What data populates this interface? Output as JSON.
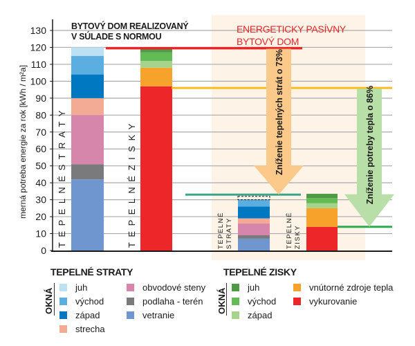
{
  "chart_data": {
    "type": "bar",
    "stacked": true,
    "ylabel": "merná potreba energie za rok [kWh / m²a]",
    "ylim": [
      0,
      130
    ],
    "yticks": [
      0,
      10,
      20,
      30,
      40,
      50,
      60,
      70,
      80,
      90,
      100,
      110,
      120,
      130
    ],
    "grid": true,
    "groups": [
      {
        "title": "BYTOVÝ DOM REALIZOVANÝ V SÚLADE S NORMOU",
        "title_lines": [
          "BYTOVÝ DOM REALIZOVANÝ",
          "V SÚLADE S NORMOU"
        ],
        "title_color": "#1a1a1a",
        "bars": [
          {
            "label": "TEPELNÉ STRATY",
            "segments": [
              {
                "name": "vetranie",
                "value": 42,
                "color": "#7096cf"
              },
              {
                "name": "podlaha - terén",
                "value": 9,
                "color": "#7a7a7c"
              },
              {
                "name": "obvodové steny",
                "value": 29,
                "color": "#d685ab"
              },
              {
                "name": "strecha",
                "value": 10,
                "color": "#f4ab95"
              },
              {
                "name": "okná západ",
                "value": 14,
                "color": "#0078c1"
              },
              {
                "name": "okná východ",
                "value": 11,
                "color": "#5aaee0"
              },
              {
                "name": "okná juh",
                "value": 5,
                "color": "#bde0f3"
              }
            ]
          },
          {
            "label": "TEPELNÉ ZISKY",
            "segments": [
              {
                "name": "vykurovanie",
                "value": 97,
                "color": "#ed2629"
              },
              {
                "name": "vnútorné zdroje tepla",
                "value": 11,
                "color": "#f7a22b"
              },
              {
                "name": "okná západ",
                "value": 4,
                "color": "#a6d48c"
              },
              {
                "name": "okná východ",
                "value": 5,
                "color": "#62bb55"
              },
              {
                "name": "okná juh",
                "value": 3,
                "color": "#4f9a45"
              }
            ]
          }
        ]
      },
      {
        "title": "ENERGETICKY PASÍVNY BYTOVÝ DOM",
        "title_lines": [
          "ENERGETICKY PASÍVNY",
          "BYTOVÝ DOM"
        ],
        "title_color": "#e8262a",
        "background": "#fdf3e6",
        "bars": [
          {
            "label": "TEPELNÉ STRATY",
            "label_lines": [
              "TEPELNÉ",
              "STRATY"
            ],
            "segments": [
              {
                "name": "vetranie",
                "value": 7,
                "color": "#7096cf"
              },
              {
                "name": "podlaha - terén",
                "value": 2,
                "color": "#7a7a7c"
              },
              {
                "name": "obvodové steny",
                "value": 7,
                "color": "#d685ab"
              },
              {
                "name": "strecha",
                "value": 3,
                "color": "#f4ab95"
              },
              {
                "name": "okná západ",
                "value": 7,
                "color": "#0078c1"
              },
              {
                "name": "okná východ",
                "value": 4,
                "color": "#5aaee0"
              },
              {
                "name": "okná juh",
                "value": 2,
                "color": "dashed"
              }
            ]
          },
          {
            "label": "TEPELNÉ ZISKY",
            "label_lines": [
              "TEPELNÉ",
              "ZISKY"
            ],
            "segments": [
              {
                "name": "vykurovanie",
                "value": 14,
                "color": "#ed2629"
              },
              {
                "name": "vnútorné zdroje tepla",
                "value": 11,
                "color": "#f7a22b"
              },
              {
                "name": "okná západ",
                "value": 3,
                "color": "#a6d48c"
              },
              {
                "name": "okná východ",
                "value": 3,
                "color": "#62bb55"
              },
              {
                "name": "okná juh",
                "value": 2.5,
                "color": "#4f9a45"
              }
            ]
          }
        ]
      }
    ],
    "reference_lines": [
      {
        "name": "total-losses-standard",
        "value": 119.5,
        "color": "#e8262a"
      },
      {
        "name": "heating-standard",
        "value": 96,
        "color": "#fbbd1d"
      },
      {
        "name": "total-losses-passive",
        "value": 33,
        "color": "#3aa58a"
      },
      {
        "name": "heating-passive",
        "value": 14,
        "color": "#2fa84f"
      }
    ],
    "annotations": [
      {
        "text": "Zníženie tepelných strát o 73%",
        "from": 119.5,
        "to": 33,
        "color": "#fbc98a"
      },
      {
        "text": "Zníženie potreby tepla o 86%",
        "from": 96,
        "to": 14,
        "color": "#b9dfa8"
      }
    ]
  },
  "legend": {
    "losses": {
      "title": "TEPELNÉ STRATY",
      "okna_label": "OKNÁ",
      "items": [
        {
          "label": "juh",
          "color": "#bde0f3"
        },
        {
          "label": "východ",
          "color": "#5aaee0"
        },
        {
          "label": "západ",
          "color": "#0078c1"
        },
        {
          "label": "strecha",
          "color": "#f4ab95"
        },
        {
          "label": "obvodové steny",
          "color": "#d685ab"
        },
        {
          "label": "podlaha - terén",
          "color": "#7a7a7c"
        },
        {
          "label": "vetranie",
          "color": "#7096cf"
        }
      ]
    },
    "gains": {
      "title": "TEPELNÉ ZISKY",
      "okna_label": "OKNÁ",
      "items": [
        {
          "label": "juh",
          "color": "#4f9a45"
        },
        {
          "label": "východ",
          "color": "#62bb55"
        },
        {
          "label": "západ",
          "color": "#a6d48c"
        },
        {
          "label": "vnútorné zdroje tepla",
          "color": "#f7a22b"
        },
        {
          "label": "vykurovanie",
          "color": "#ed2629"
        }
      ]
    }
  }
}
